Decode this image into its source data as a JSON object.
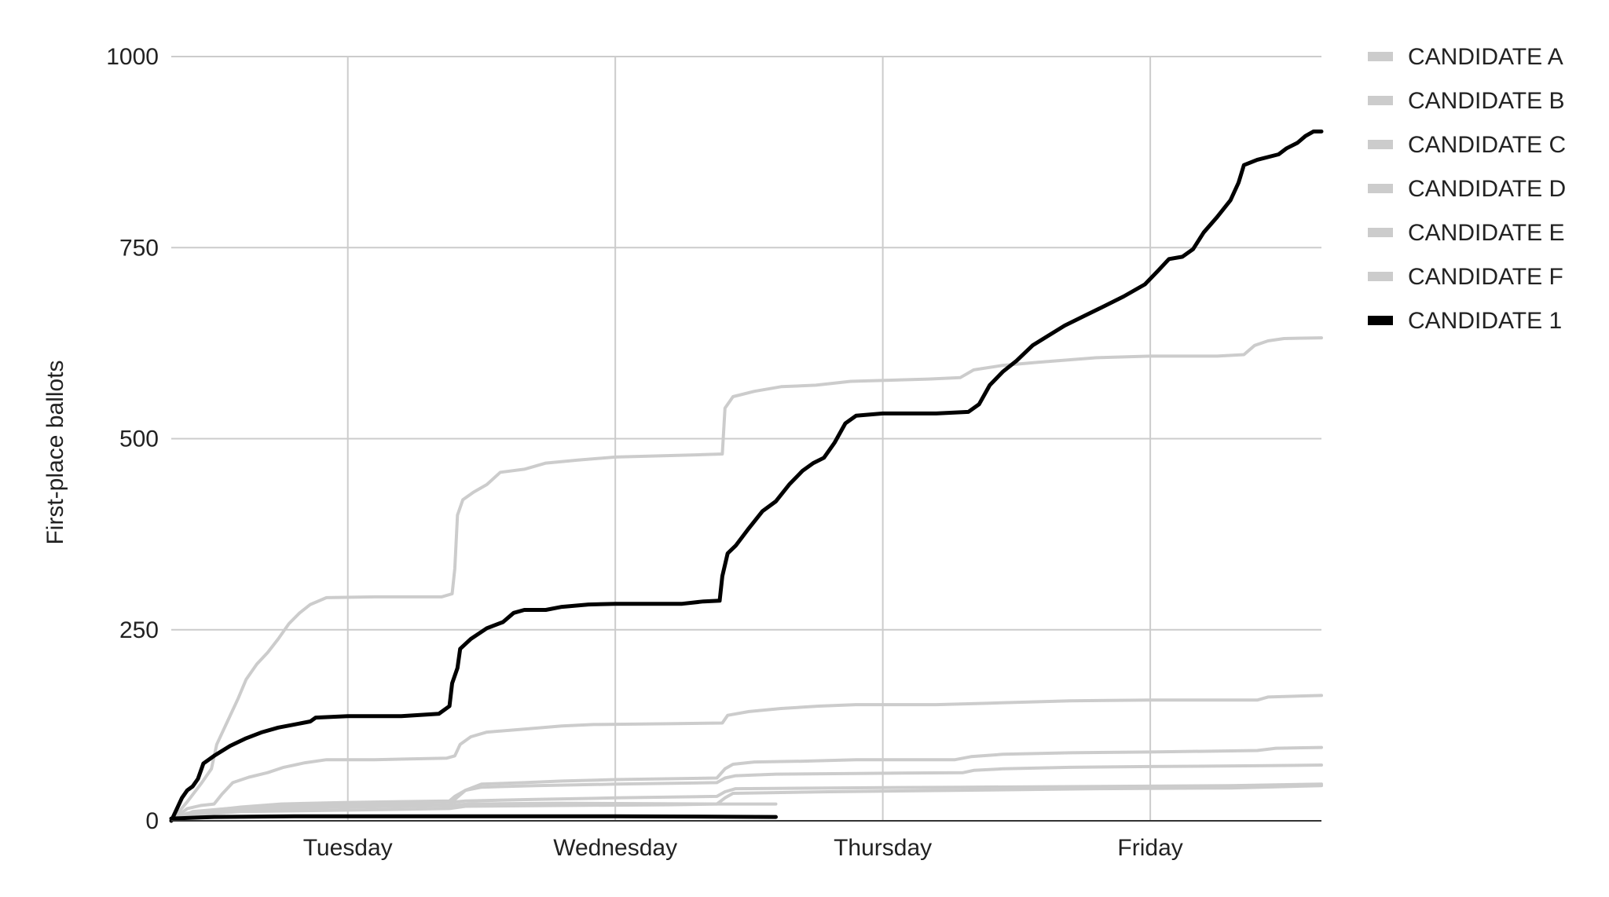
{
  "chart_data": {
    "type": "line",
    "title": "",
    "xlabel": "",
    "ylabel": "First-place ballots",
    "x_tick_labels": [
      "Tuesday",
      "Wednesday",
      "Thursday",
      "Friday"
    ],
    "x_tick_days": [
      1,
      2,
      3,
      4
    ],
    "xlim": [
      0.34,
      4.64
    ],
    "ylim": [
      0,
      1000
    ],
    "y_ticks": [
      0,
      250,
      500,
      750,
      1000
    ],
    "grid": true,
    "legend_position": "right",
    "series": [
      {
        "name": "CANDIDATE A",
        "color": "#cccccc",
        "points": [
          [
            0.34,
            0
          ],
          [
            0.4,
            25
          ],
          [
            0.45,
            48
          ],
          [
            0.49,
            68
          ],
          [
            0.51,
            100
          ],
          [
            0.55,
            130
          ],
          [
            0.59,
            160
          ],
          [
            0.62,
            185
          ],
          [
            0.66,
            205
          ],
          [
            0.7,
            220
          ],
          [
            0.74,
            238
          ],
          [
            0.78,
            258
          ],
          [
            0.82,
            272
          ],
          [
            0.86,
            283
          ],
          [
            0.92,
            292
          ],
          [
            1.1,
            293
          ],
          [
            1.35,
            293
          ],
          [
            1.39,
            297
          ],
          [
            1.4,
            330
          ],
          [
            1.41,
            400
          ],
          [
            1.43,
            420
          ],
          [
            1.47,
            430
          ],
          [
            1.52,
            440
          ],
          [
            1.57,
            456
          ],
          [
            1.66,
            460
          ],
          [
            1.74,
            468
          ],
          [
            1.86,
            472
          ],
          [
            2.0,
            476
          ],
          [
            2.32,
            479
          ],
          [
            2.4,
            480
          ],
          [
            2.41,
            540
          ],
          [
            2.44,
            555
          ],
          [
            2.52,
            562
          ],
          [
            2.62,
            568
          ],
          [
            2.75,
            570
          ],
          [
            2.88,
            575
          ],
          [
            3.17,
            578
          ],
          [
            3.29,
            580
          ],
          [
            3.34,
            590
          ],
          [
            3.45,
            596
          ],
          [
            3.58,
            600
          ],
          [
            3.8,
            606
          ],
          [
            4.0,
            608
          ],
          [
            4.25,
            608
          ],
          [
            4.35,
            610
          ],
          [
            4.39,
            622
          ],
          [
            4.44,
            628
          ],
          [
            4.5,
            631
          ],
          [
            4.64,
            632
          ]
        ]
      },
      {
        "name": "CANDIDATE B",
        "color": "#cccccc",
        "points": [
          [
            0.34,
            0
          ],
          [
            0.4,
            16
          ],
          [
            0.45,
            20
          ],
          [
            0.5,
            22
          ],
          [
            0.53,
            35
          ],
          [
            0.57,
            50
          ],
          [
            0.63,
            57
          ],
          [
            0.7,
            63
          ],
          [
            0.76,
            70
          ],
          [
            0.84,
            76
          ],
          [
            0.92,
            80
          ],
          [
            1.1,
            80
          ],
          [
            1.37,
            82
          ],
          [
            1.4,
            85
          ],
          [
            1.42,
            100
          ],
          [
            1.46,
            110
          ],
          [
            1.52,
            116
          ],
          [
            1.66,
            120
          ],
          [
            1.8,
            124
          ],
          [
            1.92,
            126
          ],
          [
            2.2,
            127
          ],
          [
            2.4,
            128
          ],
          [
            2.42,
            138
          ],
          [
            2.5,
            143
          ],
          [
            2.62,
            147
          ],
          [
            2.76,
            150
          ],
          [
            2.9,
            152
          ],
          [
            3.2,
            152
          ],
          [
            3.4,
            154
          ],
          [
            3.7,
            157
          ],
          [
            4.0,
            158
          ],
          [
            4.4,
            158
          ],
          [
            4.44,
            162
          ],
          [
            4.64,
            164
          ]
        ]
      },
      {
        "name": "CANDIDATE C",
        "color": "#cccccc",
        "points": [
          [
            0.34,
            0
          ],
          [
            0.4,
            8
          ],
          [
            0.5,
            12
          ],
          [
            0.7,
            16
          ],
          [
            1.0,
            18
          ],
          [
            1.38,
            20
          ],
          [
            1.4,
            28
          ],
          [
            1.44,
            40
          ],
          [
            1.5,
            48
          ],
          [
            1.66,
            50
          ],
          [
            1.8,
            52
          ],
          [
            2.0,
            54
          ],
          [
            2.38,
            56
          ],
          [
            2.41,
            68
          ],
          [
            2.44,
            74
          ],
          [
            2.52,
            77
          ],
          [
            2.7,
            78
          ],
          [
            2.9,
            80
          ],
          [
            3.27,
            80
          ],
          [
            3.33,
            84
          ],
          [
            3.45,
            87
          ],
          [
            3.7,
            89
          ],
          [
            4.0,
            90
          ],
          [
            4.4,
            92
          ],
          [
            4.47,
            95
          ],
          [
            4.64,
            96
          ]
        ]
      },
      {
        "name": "CANDIDATE D",
        "color": "#cccccc",
        "points": [
          [
            0.34,
            0
          ],
          [
            0.4,
            10
          ],
          [
            0.5,
            14
          ],
          [
            0.6,
            18
          ],
          [
            0.75,
            22
          ],
          [
            1.0,
            24
          ],
          [
            1.38,
            26
          ],
          [
            1.4,
            32
          ],
          [
            1.44,
            40
          ],
          [
            1.5,
            44
          ],
          [
            1.7,
            46
          ],
          [
            2.0,
            48
          ],
          [
            2.38,
            50
          ],
          [
            2.41,
            56
          ],
          [
            2.45,
            59
          ],
          [
            2.6,
            61
          ],
          [
            2.9,
            62
          ],
          [
            3.3,
            63
          ],
          [
            3.34,
            66
          ],
          [
            3.45,
            68
          ],
          [
            3.7,
            70
          ],
          [
            4.0,
            71
          ],
          [
            4.4,
            72
          ],
          [
            4.64,
            73
          ]
        ]
      },
      {
        "name": "CANDIDATE E",
        "color": "#cccccc",
        "points": [
          [
            0.34,
            0
          ],
          [
            0.42,
            12
          ],
          [
            0.55,
            16
          ],
          [
            0.75,
            20
          ],
          [
            1.0,
            22
          ],
          [
            1.38,
            24
          ],
          [
            1.44,
            26
          ],
          [
            1.7,
            28
          ],
          [
            2.0,
            30
          ],
          [
            2.38,
            32
          ],
          [
            2.41,
            38
          ],
          [
            2.45,
            42
          ],
          [
            2.8,
            43
          ],
          [
            3.3,
            44
          ],
          [
            3.8,
            45
          ],
          [
            4.3,
            46
          ],
          [
            4.64,
            48
          ]
        ]
      },
      {
        "name": "CANDIDATE F",
        "color": "#cccccc",
        "points": [
          [
            0.34,
            0
          ],
          [
            0.42,
            8
          ],
          [
            0.6,
            12
          ],
          [
            1.0,
            14
          ],
          [
            1.38,
            16
          ],
          [
            1.44,
            19
          ],
          [
            1.8,
            20
          ],
          [
            2.2,
            21
          ],
          [
            2.38,
            22
          ],
          [
            2.41,
            30
          ],
          [
            2.44,
            36
          ],
          [
            2.8,
            38
          ],
          [
            3.3,
            40
          ],
          [
            3.8,
            42
          ],
          [
            4.3,
            43
          ],
          [
            4.64,
            46
          ]
        ]
      },
      {
        "name": "",
        "color": "#cccccc",
        "points": [
          [
            0.34,
            0
          ],
          [
            0.45,
            12
          ],
          [
            0.6,
            16
          ],
          [
            0.9,
            18
          ],
          [
            1.38,
            20
          ],
          [
            1.45,
            22
          ],
          [
            1.8,
            23
          ],
          [
            2.4,
            22
          ],
          [
            2.6,
            22
          ]
        ]
      },
      {
        "name": "CANDIDATE 1",
        "color": "#000000",
        "points": [
          [
            0.34,
            0
          ],
          [
            0.36,
            15
          ],
          [
            0.38,
            30
          ],
          [
            0.4,
            40
          ],
          [
            0.42,
            45
          ],
          [
            0.44,
            55
          ],
          [
            0.46,
            75
          ],
          [
            0.5,
            85
          ],
          [
            0.56,
            98
          ],
          [
            0.62,
            108
          ],
          [
            0.68,
            116
          ],
          [
            0.74,
            122
          ],
          [
            0.8,
            126
          ],
          [
            0.86,
            130
          ],
          [
            0.88,
            135
          ],
          [
            1.0,
            137
          ],
          [
            1.2,
            137
          ],
          [
            1.34,
            140
          ],
          [
            1.38,
            150
          ],
          [
            1.39,
            180
          ],
          [
            1.41,
            200
          ],
          [
            1.42,
            225
          ],
          [
            1.46,
            238
          ],
          [
            1.52,
            252
          ],
          [
            1.58,
            260
          ],
          [
            1.62,
            272
          ],
          [
            1.66,
            276
          ],
          [
            1.74,
            276
          ],
          [
            1.8,
            280
          ],
          [
            1.9,
            283
          ],
          [
            2.0,
            284
          ],
          [
            2.25,
            284
          ],
          [
            2.33,
            287
          ],
          [
            2.39,
            288
          ],
          [
            2.4,
            320
          ],
          [
            2.42,
            350
          ],
          [
            2.45,
            360
          ],
          [
            2.5,
            383
          ],
          [
            2.55,
            405
          ],
          [
            2.6,
            418
          ],
          [
            2.65,
            440
          ],
          [
            2.7,
            458
          ],
          [
            2.74,
            468
          ],
          [
            2.78,
            475
          ],
          [
            2.82,
            495
          ],
          [
            2.86,
            520
          ],
          [
            2.9,
            530
          ],
          [
            3.0,
            533
          ],
          [
            3.2,
            533
          ],
          [
            3.32,
            535
          ],
          [
            3.36,
            545
          ],
          [
            3.4,
            570
          ],
          [
            3.45,
            588
          ],
          [
            3.5,
            602
          ],
          [
            3.56,
            622
          ],
          [
            3.62,
            635
          ],
          [
            3.68,
            648
          ],
          [
            3.75,
            660
          ],
          [
            3.82,
            672
          ],
          [
            3.9,
            686
          ],
          [
            3.98,
            702
          ],
          [
            4.03,
            720
          ],
          [
            4.07,
            735
          ],
          [
            4.12,
            738
          ],
          [
            4.16,
            748
          ],
          [
            4.2,
            770
          ],
          [
            4.25,
            790
          ],
          [
            4.3,
            812
          ],
          [
            4.33,
            835
          ],
          [
            4.35,
            858
          ],
          [
            4.4,
            865
          ],
          [
            4.48,
            872
          ],
          [
            4.51,
            880
          ],
          [
            4.55,
            887
          ],
          [
            4.58,
            896
          ],
          [
            4.61,
            902
          ],
          [
            4.64,
            902
          ]
        ]
      },
      {
        "name": "",
        "color": "#000000",
        "points": [
          [
            0.34,
            3
          ],
          [
            0.5,
            5
          ],
          [
            0.8,
            6
          ],
          [
            1.4,
            6
          ],
          [
            2.0,
            6
          ],
          [
            2.6,
            5
          ]
        ]
      }
    ]
  }
}
